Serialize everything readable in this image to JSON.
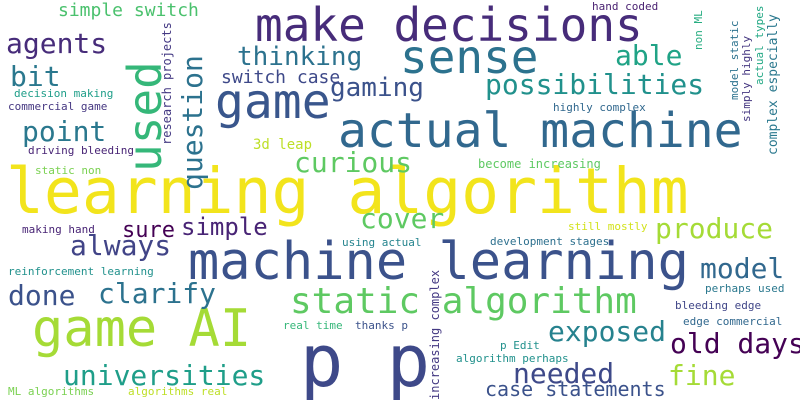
{
  "words": [
    {
      "text": "learning algorithm",
      "color": "#f2e41c",
      "vertical": false
    },
    {
      "text": "machine learning",
      "color": "#3b528b",
      "vertical": false
    },
    {
      "text": "make decisions",
      "color": "#472c7a",
      "vertical": false
    },
    {
      "text": "actual machine",
      "color": "#31688e",
      "vertical": false
    },
    {
      "text": "game AI",
      "color": "#a5db36",
      "vertical": false
    },
    {
      "text": "p p",
      "color": "#3e4989",
      "vertical": false
    },
    {
      "text": "sense",
      "color": "#2c728e",
      "vertical": false
    },
    {
      "text": "game",
      "color": "#39568c",
      "vertical": false
    },
    {
      "text": "used",
      "color": "#35b779",
      "vertical": true
    },
    {
      "text": "static algorithm",
      "color": "#5ec962",
      "vertical": false
    },
    {
      "text": "possibilities",
      "color": "#21918c",
      "vertical": false
    },
    {
      "text": "thinking",
      "color": "#2c728e",
      "vertical": false
    },
    {
      "text": "gaming",
      "color": "#3b528b",
      "vertical": false
    },
    {
      "text": "point",
      "color": "#2a788e",
      "vertical": false
    },
    {
      "text": "curious",
      "color": "#5ec962",
      "vertical": false
    },
    {
      "text": "question",
      "color": "#2c728e",
      "vertical": true
    },
    {
      "text": "agents",
      "color": "#472c7a",
      "vertical": false
    },
    {
      "text": "able",
      "color": "#20a386",
      "vertical": false
    },
    {
      "text": "bit",
      "color": "#2a788e",
      "vertical": false
    },
    {
      "text": "cover",
      "color": "#5ec962",
      "vertical": false
    },
    {
      "text": "produce",
      "color": "#a5db36",
      "vertical": false
    },
    {
      "text": "always",
      "color": "#414487",
      "vertical": false
    },
    {
      "text": "sure",
      "color": "#440154",
      "vertical": false
    },
    {
      "text": "simple",
      "color": "#482475",
      "vertical": false
    },
    {
      "text": "model",
      "color": "#31688e",
      "vertical": false
    },
    {
      "text": "done",
      "color": "#3b528b",
      "vertical": false
    },
    {
      "text": "clarify",
      "color": "#2c728e",
      "vertical": false
    },
    {
      "text": "exposed",
      "color": "#26828e",
      "vertical": false
    },
    {
      "text": "old days",
      "color": "#440154",
      "vertical": false
    },
    {
      "text": "needed",
      "color": "#3e4989",
      "vertical": false
    },
    {
      "text": "fine",
      "color": "#a5db36",
      "vertical": false
    },
    {
      "text": "universities",
      "color": "#1f9e89",
      "vertical": false
    },
    {
      "text": "case statements",
      "color": "#3b528b",
      "vertical": false
    },
    {
      "text": "simple switch",
      "color": "#4ac16d",
      "vertical": false
    },
    {
      "text": "switch case",
      "color": "#3e4989",
      "vertical": false
    },
    {
      "text": "research projects",
      "color": "#443983",
      "vertical": true
    },
    {
      "text": "decision making",
      "color": "#1f9e89",
      "vertical": false
    },
    {
      "text": "commercial game",
      "color": "#453781",
      "vertical": false
    },
    {
      "text": "driving bleeding",
      "color": "#482475",
      "vertical": false
    },
    {
      "text": "static non",
      "color": "#7ad151",
      "vertical": false
    },
    {
      "text": "making hand",
      "color": "#482475",
      "vertical": false
    },
    {
      "text": "reinforcement learning",
      "color": "#21918c",
      "vertical": false
    },
    {
      "text": "ML algorithms",
      "color": "#7ad151",
      "vertical": false
    },
    {
      "text": "algorithms real",
      "color": "#bddf26",
      "vertical": false
    },
    {
      "text": "hand coded",
      "color": "#481f70",
      "vertical": false
    },
    {
      "text": "non ML",
      "color": "#27ad81",
      "vertical": true
    },
    {
      "text": "model static",
      "color": "#2c728e",
      "vertical": true
    },
    {
      "text": "simply highly",
      "color": "#453781",
      "vertical": true
    },
    {
      "text": "actual types",
      "color": "#22a884",
      "vertical": true
    },
    {
      "text": "highly complex",
      "color": "#31688e",
      "vertical": false
    },
    {
      "text": "complex especially",
      "color": "#2a788e",
      "vertical": true
    },
    {
      "text": "3d leap",
      "color": "#bddf26",
      "vertical": false
    },
    {
      "text": "become increasing",
      "color": "#5ec962",
      "vertical": false
    },
    {
      "text": "still mostly",
      "color": "#d2e21b",
      "vertical": false
    },
    {
      "text": "using actual",
      "color": "#25848e",
      "vertical": false
    },
    {
      "text": "development stages",
      "color": "#2d708e",
      "vertical": false
    },
    {
      "text": "increasing complex",
      "color": "#443983",
      "vertical": true
    },
    {
      "text": "perhaps used",
      "color": "#2a788e",
      "vertical": false
    },
    {
      "text": "bleeding edge",
      "color": "#404688",
      "vertical": false
    },
    {
      "text": "edge commercial",
      "color": "#31688e",
      "vertical": false
    },
    {
      "text": "real time",
      "color": "#35b779",
      "vertical": false
    },
    {
      "text": "thanks p",
      "color": "#3b528b",
      "vertical": false
    },
    {
      "text": "p Edit",
      "color": "#21918c",
      "vertical": false
    },
    {
      "text": "algorithm perhaps",
      "color": "#21918c",
      "vertical": false
    }
  ]
}
